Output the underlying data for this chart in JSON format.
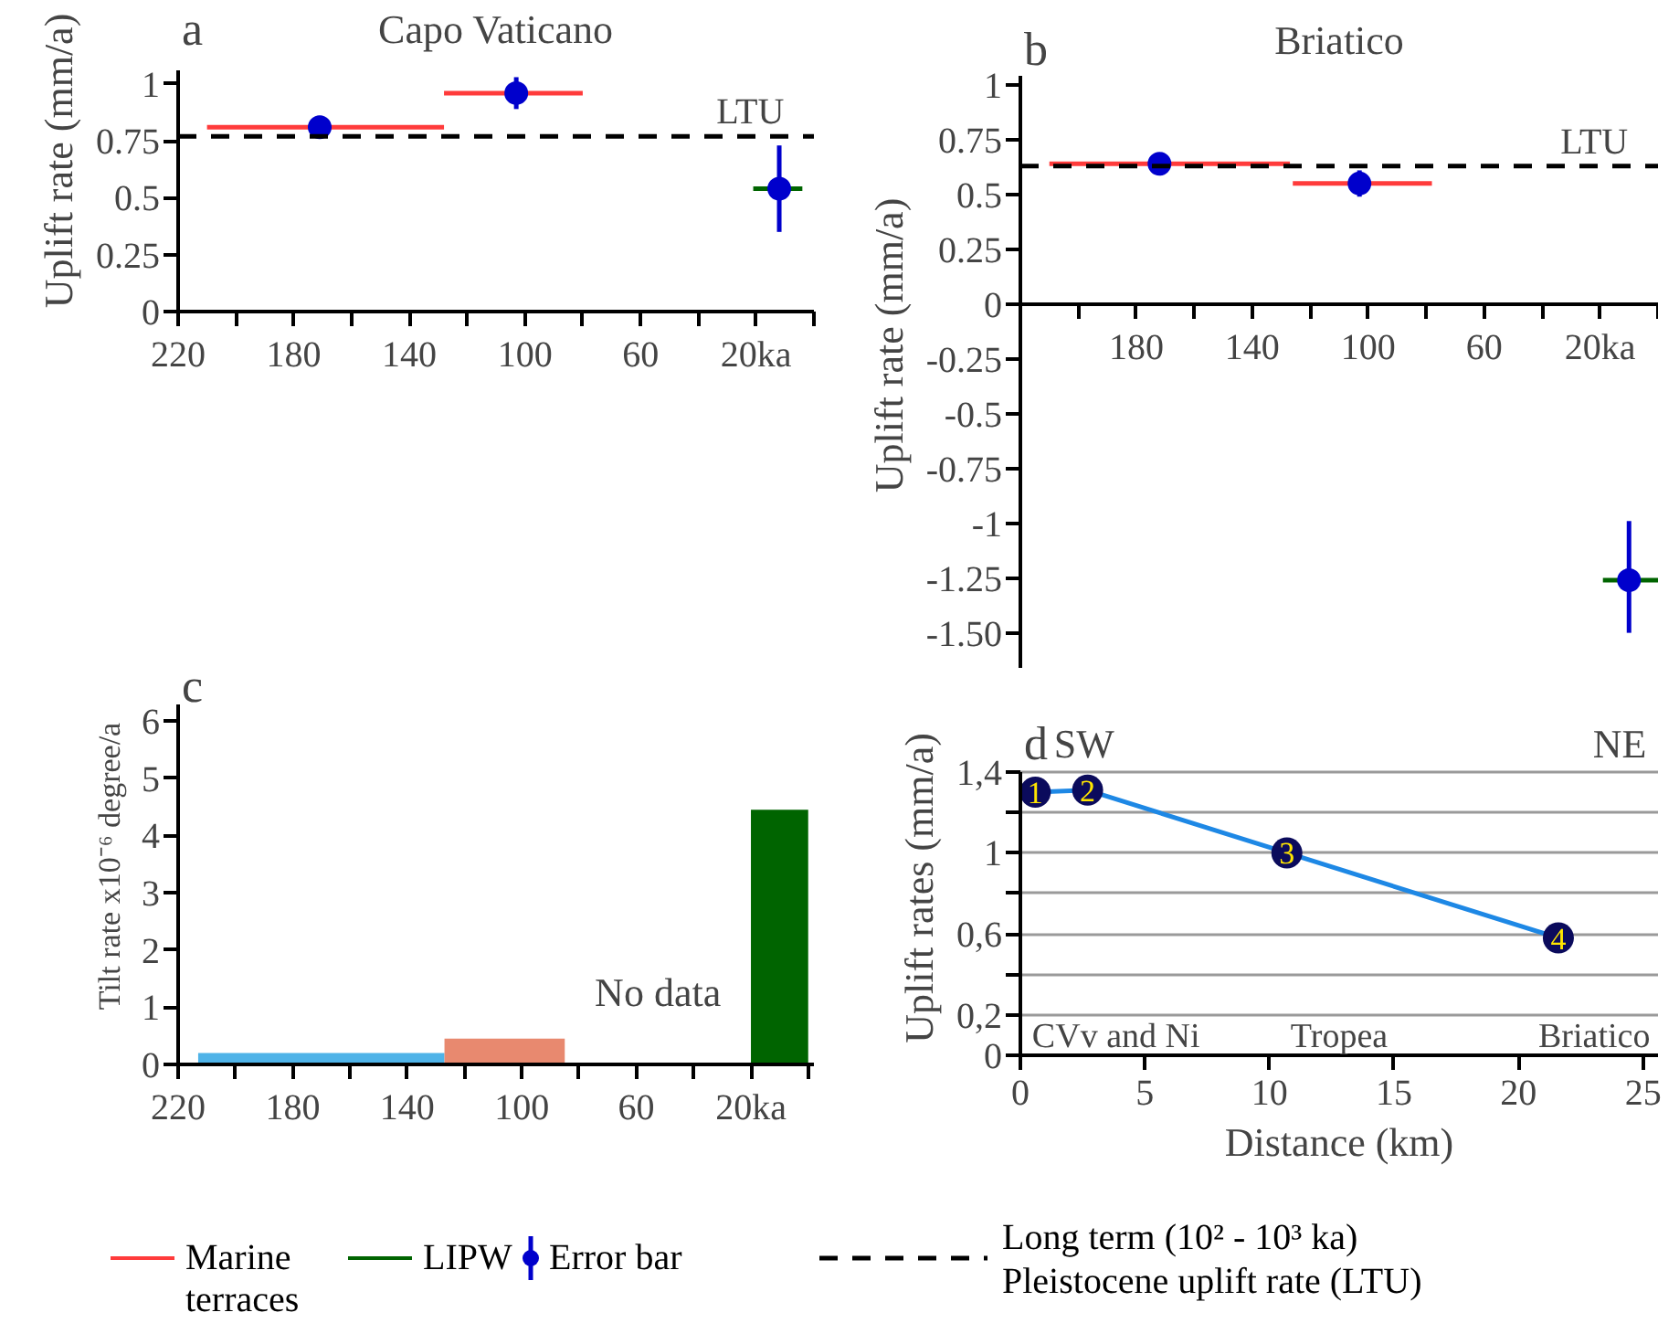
{
  "chart_data": [
    {
      "type": "line",
      "title": "Capo Vaticano",
      "ylabel": "Uplift rate (mm/a)",
      "xlim": [
        220,
        0
      ],
      "ylim": [
        0,
        1.06
      ],
      "xticks": [
        220,
        {
          "value": 200,
          "label": null
        },
        180,
        {
          "value": 160,
          "label": null
        },
        140,
        {
          "value": 120,
          "label": null
        },
        100,
        {
          "value": 80,
          "label": null
        },
        60,
        {
          "value": 40,
          "label": null
        },
        {
          "value": 20,
          "label": "20ka"
        },
        {
          "value": 0,
          "label": null
        }
      ],
      "yticks": [
        0,
        0.25,
        0.5,
        0.75,
        1
      ],
      "series": [
        {
          "name": "Marine terraces",
          "color": "#ff3b3b",
          "x": [
            210,
            128
          ],
          "values": [
            0.81,
            0.81
          ]
        },
        {
          "color": "#ff3b3b",
          "x": [
            128,
            80
          ],
          "values": [
            0.96,
            0.96
          ]
        },
        {
          "name": "LIPW",
          "color": "#006400",
          "x": [
            21,
            4
          ],
          "values": [
            0.54,
            0.54
          ]
        },
        {
          "name": "Error bar",
          "type": "scatter",
          "marker": "circle",
          "color": "#0000cc",
          "x": [
            171,
            103,
            12
          ],
          "values": [
            0.81,
            0.96,
            0.54
          ],
          "errors": [
            0.05,
            0.07,
            [
              0.35,
              0.73
            ]
          ]
        }
      ],
      "ref_lines": [
        {
          "axis": "y",
          "value": 0.77,
          "label": "LTU",
          "color": "#000000",
          "line_style": "dashed"
        }
      ],
      "annotations": [
        "a",
        "Long term (10² - 10³ ka)",
        "Pleistocene uplift rate (LTU)"
      ],
      "legend": "bottom"
    },
    {
      "type": "line",
      "title": "Briatico",
      "ylabel": "Uplift rate (mm/a)",
      "xlim": [
        220,
        0
      ],
      "ylim": [
        -1.66,
        1.04
      ],
      "xticks": [
        {
          "value": 200,
          "label": null
        },
        180,
        {
          "value": 160,
          "label": null
        },
        140,
        {
          "value": 120,
          "label": null
        },
        100,
        {
          "value": 80,
          "label": null
        },
        60,
        {
          "value": 40,
          "label": null
        },
        {
          "value": 20,
          "label": "20ka"
        },
        {
          "value": 0,
          "label": null
        }
      ],
      "yticks": [
        {
          "value": -1.5,
          "label": "-1.50"
        },
        -1.25,
        -1,
        -0.75,
        -0.5,
        -0.25,
        0,
        0.25,
        0.5,
        0.75,
        1
      ],
      "series": [
        {
          "color": "#ff3b3b",
          "x": [
            210,
            127
          ],
          "values": [
            0.64,
            0.64
          ]
        },
        {
          "color": "#ff3b3b",
          "x": [
            126,
            78
          ],
          "values": [
            0.55,
            0.55
          ]
        },
        {
          "color": "#006400",
          "x": [
            19,
            0
          ],
          "values": [
            -1.26,
            -1.26
          ]
        },
        {
          "type": "scatter",
          "marker": "circle",
          "color": "#0000cc",
          "x": [
            172,
            103,
            10
          ],
          "values": [
            0.64,
            0.55,
            -1.26
          ],
          "errors": [
            0.04,
            0.06,
            [
              -1.5,
              -0.99
            ]
          ]
        }
      ],
      "ref_lines": [
        {
          "axis": "y",
          "value": 0.63,
          "label": "LTU",
          "color": "#000000",
          "line_style": "dashed"
        }
      ],
      "annotations": [
        "b"
      ]
    },
    {
      "type": "histogram",
      "ylabel": "Tilt rate x10⁻⁶ degree/a",
      "xlim": [
        220,
        -2
      ],
      "ylim": [
        0,
        6.3
      ],
      "xticks": [
        220,
        {
          "value": 200,
          "label": null
        },
        180,
        {
          "value": 160,
          "label": null
        },
        140,
        {
          "value": 120,
          "label": null
        },
        100,
        {
          "value": 80,
          "label": null
        },
        60,
        {
          "value": 40,
          "label": null
        },
        {
          "value": 20,
          "label": "20ka"
        },
        {
          "value": 0,
          "label": null
        }
      ],
      "yticks": [
        0,
        1,
        2,
        3,
        4,
        5,
        6
      ],
      "bins": [
        213,
        127,
        85,
        20,
        0
      ],
      "values": [
        0.2,
        0.45,
        null,
        4.45
      ],
      "colors": [
        "#4fb3e8",
        "#e8896f",
        null,
        "#006400"
      ],
      "annotations": [
        "c",
        "No data"
      ]
    },
    {
      "type": "line",
      "xlabel": "Distance (km)",
      "ylabel": "Uplift rates (mm/a)",
      "xlim": [
        0,
        25.6
      ],
      "ylim": [
        0,
        1.4
      ],
      "xticks": [
        0,
        5,
        10,
        15,
        20,
        25
      ],
      "yticks": [
        0,
        {
          "value": 0.2,
          "label": "0,2"
        },
        {
          "value": 0.4,
          "label": null
        },
        {
          "value": 0.6,
          "label": "0,6"
        },
        {
          "value": 0.8,
          "label": null
        },
        1,
        {
          "value": 1.2,
          "label": null
        },
        {
          "value": 1.4,
          "label": "1,4"
        }
      ],
      "grid": "y",
      "marker": "circle",
      "series": [
        {
          "color": "#1e88e5",
          "colors": [
            "#0b0b5c",
            "#0b0b5c",
            "#0b0b5c",
            "#0b0b5c"
          ],
          "x": [
            0.6,
            2.7,
            10.7,
            21.6
          ],
          "values": [
            1.3,
            1.31,
            1.0,
            0.58
          ]
        }
      ],
      "annotations": [
        "d",
        "SW",
        "NE",
        "CVv and Ni",
        "Tropea",
        "Briatico",
        {
          "text": "1",
          "x": 0.6,
          "y": 1.3
        },
        {
          "text": "2",
          "x": 2.7,
          "y": 1.31
        },
        {
          "text": "3",
          "x": 10.7,
          "y": 1.0
        },
        {
          "text": "4",
          "x": 21.6,
          "y": 0.58
        }
      ]
    }
  ]
}
